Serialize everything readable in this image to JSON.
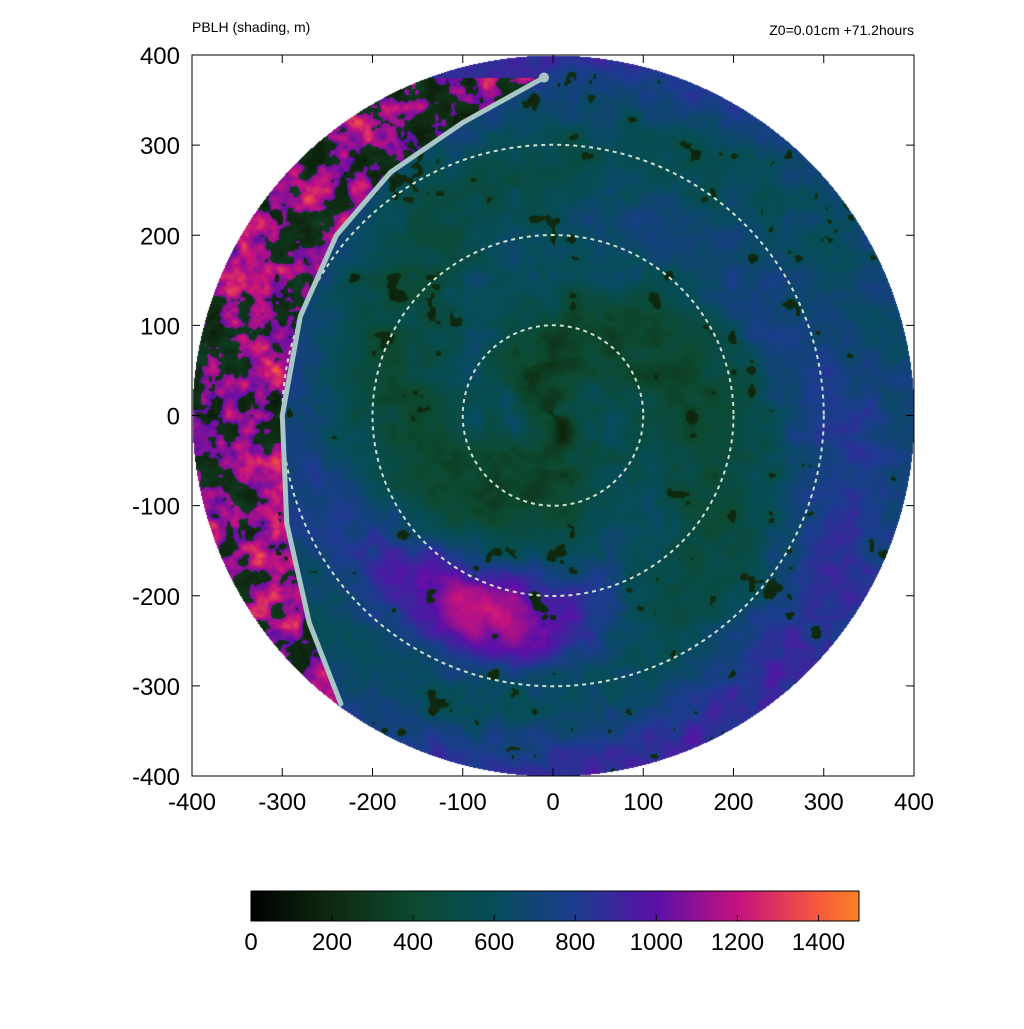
{
  "chart_data": {
    "type": "heatmap",
    "title": "PBLH (shading, m)",
    "subtitle": "Z0=0.01cm  +71.2hours",
    "xlabel": "",
    "ylabel": "",
    "xlim": [
      -400,
      400
    ],
    "ylim": [
      -400,
      400
    ],
    "x_ticks": [
      -400,
      -300,
      -200,
      -100,
      0,
      100,
      200,
      300,
      400
    ],
    "y_ticks": [
      -400,
      -300,
      -200,
      -100,
      0,
      100,
      200,
      300,
      400
    ],
    "x_tick_labels": [
      "-400",
      "-300",
      "-200",
      "-100",
      "0",
      "100",
      "200",
      "300",
      "400"
    ],
    "y_tick_labels": [
      "-400",
      "-300",
      "-200",
      "-100",
      "0",
      "100",
      "200",
      "300",
      "400"
    ],
    "domain_radius": 400,
    "grid": false,
    "colorbar": {
      "min": 0,
      "max": 1500,
      "ticks": [
        0,
        200,
        400,
        600,
        800,
        1000,
        1200,
        1400
      ],
      "tick_labels": [
        "0",
        "200",
        "400",
        "600",
        "800",
        "1000",
        "1200",
        "1400"
      ],
      "stops": [
        {
          "value": 0,
          "color": "#000000"
        },
        {
          "value": 200,
          "color": "#0f2a10"
        },
        {
          "value": 400,
          "color": "#0c4a30"
        },
        {
          "value": 600,
          "color": "#064d5a"
        },
        {
          "value": 800,
          "color": "#1c3c8e"
        },
        {
          "value": 1000,
          "color": "#5a10a8"
        },
        {
          "value": 1200,
          "color": "#c3127f"
        },
        {
          "value": 1400,
          "color": "#f75a3c"
        },
        {
          "value": 1500,
          "color": "#f98224"
        }
      ]
    },
    "field": {
      "description_values_m": {
        "eye_center": 300,
        "inner_core_r_lt_100": 450,
        "rainband_annulus_r_100_300": 650,
        "outer_band_r_300_400": 800,
        "southwest_rainband_peak": 1050,
        "western_dry_sector_peak": 1400,
        "cold_pool_patches": 150
      }
    },
    "range_rings": [
      {
        "radius": 100,
        "style": "dashed",
        "color": "#cfe0d0"
      },
      {
        "radius": 200,
        "style": "dashed",
        "color": "#cfe0d0"
      },
      {
        "radius": 300,
        "style": "dashed",
        "color": "#cfe0d0"
      }
    ],
    "boundary_line": {
      "color": "#a9c6c6",
      "points": [
        [
          -10,
          375
        ],
        [
          -100,
          325
        ],
        [
          -180,
          270
        ],
        [
          -240,
          200
        ],
        [
          -280,
          110
        ],
        [
          -300,
          0
        ],
        [
          -295,
          -120
        ],
        [
          -270,
          -230
        ],
        [
          -235,
          -320
        ]
      ]
    }
  }
}
